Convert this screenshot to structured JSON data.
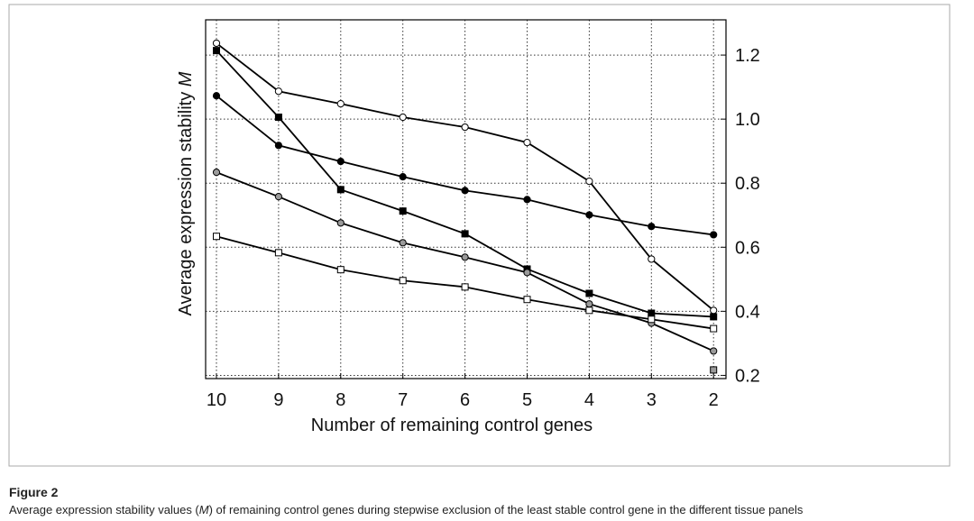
{
  "chart_data": {
    "type": "line",
    "ylabel": "Average expression stability",
    "ylabel_symbol": "M",
    "xlabel": "Number of remaining control genes",
    "categories": [
      "10",
      "9",
      "8",
      "7",
      "6",
      "5",
      "4",
      "3",
      "2"
    ],
    "series": [
      {
        "color": "#000000",
        "marker": "circle",
        "fill": "#ffffff",
        "values": [
          1.237,
          1.087,
          1.048,
          1.006,
          0.975,
          0.927,
          0.806,
          0.563,
          0.403
        ]
      },
      {
        "color": "#000000",
        "marker": "circle",
        "fill": "#000000",
        "values": [
          1.073,
          0.918,
          0.868,
          0.82,
          0.777,
          0.749,
          0.701,
          0.665,
          0.639
        ]
      },
      {
        "color": "#000000",
        "marker": "square",
        "fill": "#000000",
        "values": [
          1.214,
          1.006,
          0.78,
          0.713,
          0.642,
          0.532,
          0.456,
          0.394,
          0.383
        ]
      },
      {
        "color": "#000000",
        "marker": "circle",
        "fill": "#9a9a9a",
        "values": [
          0.834,
          0.758,
          0.676,
          0.614,
          0.569,
          0.521,
          0.423,
          0.363,
          0.276
        ]
      },
      {
        "color": "#000000",
        "marker": "square",
        "fill": "#ffffff",
        "values": [
          0.634,
          0.583,
          0.53,
          0.496,
          0.476,
          0.437,
          0.403,
          0.375,
          0.346
        ]
      },
      {
        "color": "#000000",
        "marker": "square",
        "fill": "#9a9a9a",
        "values": [
          null,
          null,
          null,
          null,
          null,
          null,
          null,
          null,
          0.217
        ]
      }
    ],
    "ylim": [
      0.19,
      1.31
    ],
    "yticks": [
      0.2,
      0.4,
      0.6,
      0.8,
      {
        "value": 1,
        "label": "1.0"
      },
      1.2
    ],
    "grid": true
  },
  "figure_label": "Figure 2",
  "caption_before": "Average expression stability values (",
  "caption_symbol": "M",
  "caption_after": ") of remaining control genes during stepwise exclusion of the least stable control gene in the different tissue panels"
}
